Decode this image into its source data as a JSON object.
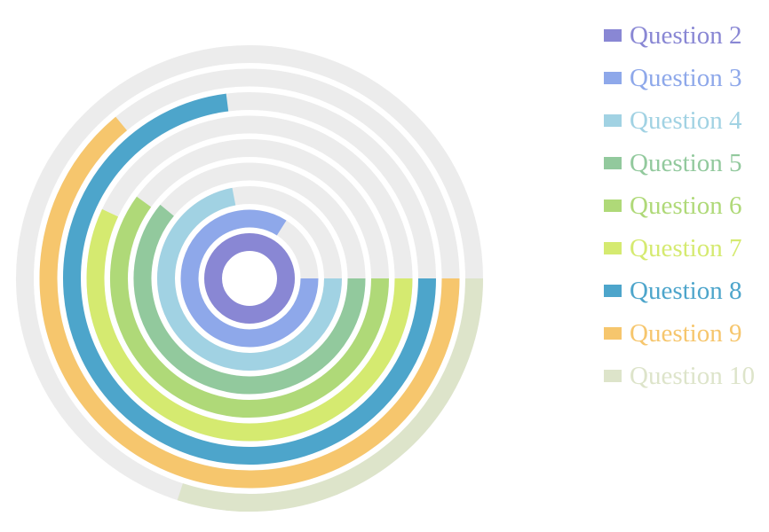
{
  "chart_data": {
    "type": "radial-bar",
    "start_angle_deg": 0,
    "direction": "clockwise",
    "max_value": 100,
    "track_color": "#ececec",
    "legend_position": "right",
    "series": [
      {
        "name": "Question 2",
        "value": 100,
        "color": "#8987d4"
      },
      {
        "name": "Question 3",
        "value": 84,
        "color": "#8ea8ea"
      },
      {
        "name": "Question 4",
        "value": 72,
        "color": "#a1d2e3"
      },
      {
        "name": "Question 5",
        "value": 61,
        "color": "#92c99d"
      },
      {
        "name": "Question 6",
        "value": 60,
        "color": "#afd978"
      },
      {
        "name": "Question 7",
        "value": 57,
        "color": "#d5ea70"
      },
      {
        "name": "Question 8",
        "value": 73,
        "color": "#4da5cb"
      },
      {
        "name": "Question 9",
        "value": 64,
        "color": "#f6c66d"
      },
      {
        "name": "Question 10",
        "value": 30,
        "color": "#dde4ca"
      }
    ]
  }
}
